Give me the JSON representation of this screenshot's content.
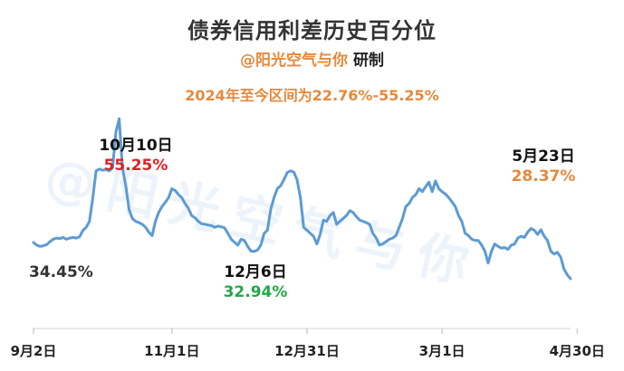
{
  "title": "债券信用利差历史百分位",
  "author": "@阳光空气与你",
  "research": "研制",
  "range_note": "2024年至今区间为22.76%-55.25%",
  "watermark": "@阳光空气与你",
  "annotations": {
    "start_value": "34.45%",
    "peak_date": "10月10日",
    "peak_value": "55.25%",
    "low_date": "12月6日",
    "low_value": "32.94%",
    "end_date": "5月23日",
    "end_value": "28.37%"
  },
  "colors": {
    "line": "#5b9bd5",
    "accent": "#e8883a",
    "peak": "#e02020",
    "low": "#22a845"
  },
  "chart_data": {
    "type": "line",
    "title": "债券信用利差历史百分位",
    "xlabel": "",
    "ylabel": "",
    "x_tick_labels": [
      "9月2日",
      "11月1日",
      "12月31日",
      "3月1日",
      "4月30日"
    ],
    "x_ticks_at_index": [
      0,
      42,
      83,
      124,
      165
    ],
    "ylim": [
      20,
      60
    ],
    "grid": false,
    "legend": "none",
    "series": [
      {
        "values": [
          34.45,
          34.0,
          33.8,
          33.9,
          34.1,
          34.6,
          35.0,
          35.2,
          35.1,
          35.3,
          35.0,
          35.2,
          35.3,
          35.2,
          35.4,
          36.5,
          37.0,
          38.0,
          42.0,
          46.5,
          46.8,
          46.6,
          46.7,
          46.5,
          47.0,
          53.0,
          55.25,
          47.0,
          44.0,
          40.0,
          38.5,
          38.0,
          37.8,
          37.5,
          37.0,
          36.2,
          35.6,
          38.0,
          39.5,
          40.5,
          41.2,
          42.0,
          43.5,
          43.2,
          42.5,
          42.0,
          41.0,
          40.2,
          39.0,
          38.6,
          38.0,
          37.6,
          37.5,
          37.4,
          37.3,
          37.0,
          37.2,
          37.1,
          36.9,
          36.0,
          35.0,
          34.5,
          34.0,
          35.0,
          34.8,
          33.8,
          33.0,
          32.94,
          33.2,
          34.0,
          36.0,
          36.5,
          40.0,
          42.0,
          43.5,
          44.0,
          45.0,
          46.2,
          46.5,
          46.3,
          45.0,
          42.0,
          37.0,
          36.5,
          36.0,
          35.5,
          34.2,
          35.8,
          38.2,
          38.0,
          39.0,
          39.5,
          37.5,
          38.0,
          38.5,
          39.0,
          39.8,
          39.5,
          38.8,
          38.2,
          38.0,
          37.8,
          37.5,
          36.0,
          35.2,
          34.0,
          34.2,
          34.6,
          35.0,
          35.2,
          35.6,
          37.0,
          38.5,
          40.5,
          41.0,
          42.0,
          42.5,
          43.5,
          43.0,
          43.8,
          44.6,
          43.0,
          44.8,
          43.5,
          43.0,
          42.6,
          42.0,
          41.3,
          40.5,
          39.0,
          38.0,
          36.0,
          35.6,
          35.0,
          34.8,
          34.8,
          34.0,
          33.0,
          31.0,
          33.0,
          34.2,
          33.8,
          33.5,
          33.6,
          33.3,
          34.0,
          34.2,
          35.2,
          35.5,
          35.3,
          36.2,
          36.8,
          36.5,
          35.8,
          36.6,
          35.5,
          34.8,
          33.0,
          32.5,
          32.8,
          32.0,
          30.0,
          29.0,
          28.37
        ]
      }
    ]
  }
}
